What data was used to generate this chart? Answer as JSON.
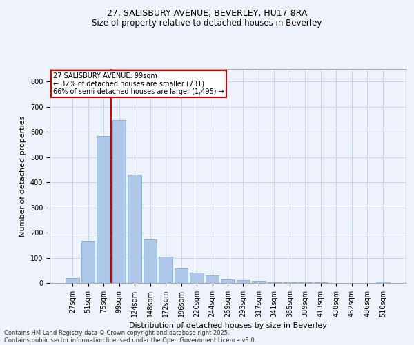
{
  "title_line1": "27, SALISBURY AVENUE, BEVERLEY, HU17 8RA",
  "title_line2": "Size of property relative to detached houses in Beverley",
  "xlabel": "Distribution of detached houses by size in Beverley",
  "ylabel": "Number of detached properties",
  "categories": [
    "27sqm",
    "51sqm",
    "75sqm",
    "99sqm",
    "124sqm",
    "148sqm",
    "172sqm",
    "196sqm",
    "220sqm",
    "244sqm",
    "269sqm",
    "293sqm",
    "317sqm",
    "341sqm",
    "365sqm",
    "389sqm",
    "413sqm",
    "438sqm",
    "462sqm",
    "486sqm",
    "510sqm"
  ],
  "values": [
    18,
    167,
    583,
    648,
    430,
    172,
    105,
    57,
    42,
    30,
    15,
    10,
    9,
    4,
    4,
    4,
    4,
    1,
    0,
    0,
    5
  ],
  "bar_color": "#aec6e8",
  "bar_edgecolor": "#7bafd4",
  "vline_index": 3,
  "vline_color": "#cc0000",
  "annotation_text": "27 SALISBURY AVENUE: 99sqm\n← 32% of detached houses are smaller (731)\n66% of semi-detached houses are larger (1,495) →",
  "annotation_box_edgecolor": "#cc0000",
  "annotation_box_facecolor": "#ffffff",
  "ylim": [
    0,
    850
  ],
  "yticks": [
    0,
    100,
    200,
    300,
    400,
    500,
    600,
    700,
    800
  ],
  "footer_line1": "Contains HM Land Registry data © Crown copyright and database right 2025.",
  "footer_line2": "Contains public sector information licensed under the Open Government Licence v3.0.",
  "background_color": "#eef2fa",
  "grid_color": "#c8d4e8",
  "title_fontsize": 9,
  "subtitle_fontsize": 8.5,
  "ylabel_fontsize": 8,
  "xlabel_fontsize": 8,
  "tick_fontsize": 7,
  "footer_fontsize": 6,
  "annot_fontsize": 7
}
